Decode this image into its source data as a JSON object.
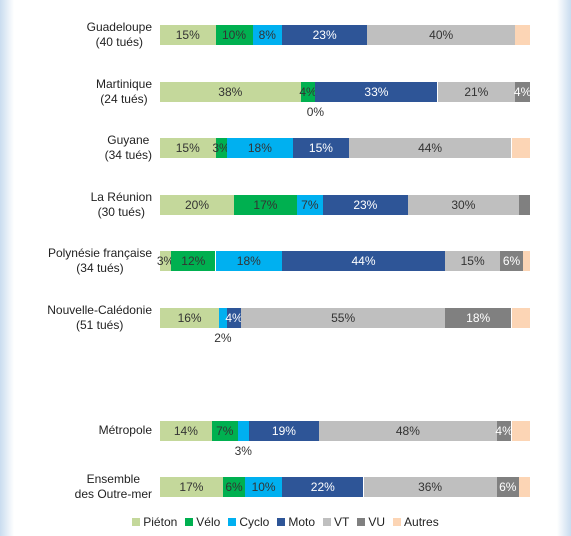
{
  "chart_data": {
    "type": "stacked-bar",
    "categories": [
      "Guadeloupe\n(40 tués)",
      "Martinique\n(24 tués)",
      "Guyane\n(34 tués)",
      "La Réunion\n(30 tués)",
      "Polynésie française\n(34 tués)",
      "Nouvelle-Calédonie\n(51 tués)",
      null,
      "Métropole",
      "Ensemble\ndes Outre-mer"
    ],
    "xlim": [
      0,
      100
    ],
    "series": [
      {
        "name": "Piéton",
        "color": "#c4d89b",
        "values": [
          15,
          38,
          15,
          20,
          3,
          16,
          null,
          14,
          17
        ],
        "value_labels": [
          "15%",
          "38%",
          "15%",
          "20%",
          "3%",
          "16%",
          null,
          "14%",
          "17%"
        ]
      },
      {
        "name": "Vélo",
        "color": "#00b050",
        "values": [
          10,
          4,
          3,
          17,
          12,
          0,
          null,
          7,
          6
        ],
        "value_labels": [
          "10%",
          "4%",
          "3%",
          "17%",
          "12%",
          null,
          null,
          "7%",
          "6%"
        ]
      },
      {
        "name": "Cyclo",
        "color": "#00b0f0",
        "values": [
          8,
          0,
          18,
          7,
          18,
          2,
          null,
          3,
          10
        ],
        "value_labels": [
          "8%",
          "0%",
          "18%",
          "7%",
          "18%",
          "2%",
          null,
          "3%",
          "10%"
        ]
      },
      {
        "name": "Moto",
        "color": "#2e5597",
        "values": [
          23,
          33,
          15,
          23,
          44,
          4,
          null,
          19,
          22
        ],
        "value_labels": [
          "23%",
          "33%",
          "15%",
          "23%",
          "44%",
          "4%",
          null,
          "19%",
          "22%"
        ]
      },
      {
        "name": "VT",
        "color": "#bfbfbf",
        "values": [
          40,
          21,
          44,
          30,
          15,
          55,
          null,
          48,
          36
        ],
        "value_labels": [
          "40%",
          "21%",
          "44%",
          "30%",
          "15%",
          "55%",
          null,
          "48%",
          "36%"
        ]
      },
      {
        "name": "VU",
        "color": "#808080",
        "values": [
          0,
          4,
          0,
          3,
          6,
          18,
          null,
          4,
          6
        ],
        "value_labels": [
          null,
          "4%",
          null,
          null,
          "6%",
          "18%",
          null,
          "4%",
          "6%"
        ]
      },
      {
        "name": "Autres",
        "color": "#fcd5b5",
        "values": [
          4,
          0,
          5,
          0,
          2,
          5,
          null,
          5,
          3
        ],
        "value_labels": [
          null,
          null,
          null,
          null,
          null,
          null,
          null,
          null,
          null
        ]
      }
    ]
  }
}
